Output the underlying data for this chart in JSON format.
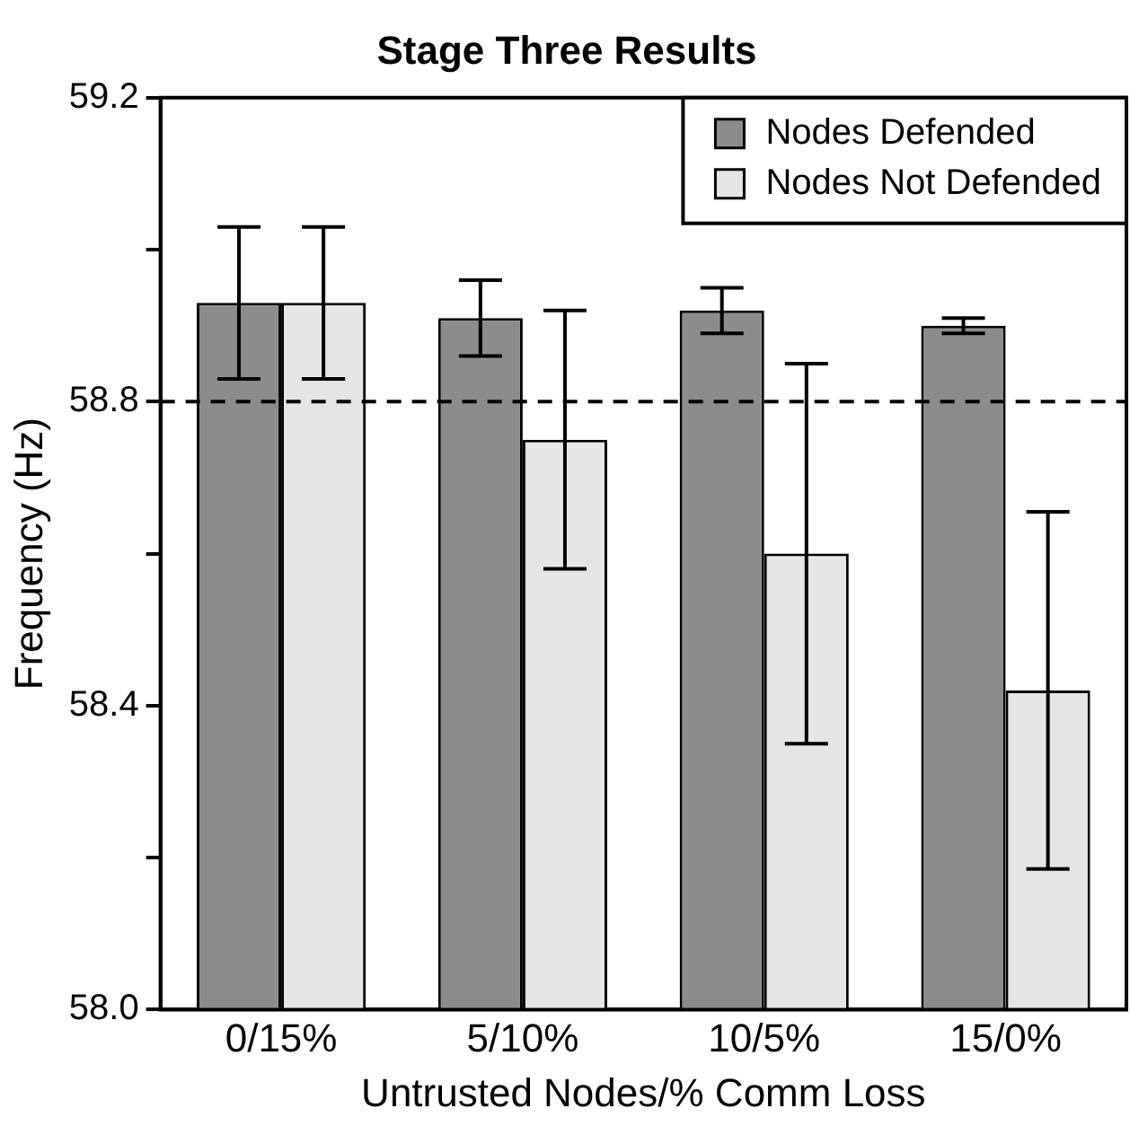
{
  "chart_data": {
    "type": "bar",
    "title": "Stage Three Results",
    "xlabel": "Untrusted Nodes/% Comm Loss",
    "ylabel": "Frequency (Hz)",
    "categories": [
      "0/15%",
      "5/10%",
      "10/5%",
      "15/0%"
    ],
    "series": [
      {
        "name": "Nodes Defended",
        "color": "#8c8c8c",
        "values": [
          58.93,
          58.91,
          58.92,
          58.9
        ],
        "errors": [
          0.1,
          0.05,
          0.03,
          0.01
        ]
      },
      {
        "name": "Nodes Not Defended",
        "color": "#e6e6e6",
        "values": [
          58.93,
          58.75,
          58.6,
          58.42
        ],
        "errors": [
          0.1,
          0.17,
          0.25,
          0.235
        ]
      }
    ],
    "ylim": [
      58,
      59.2
    ],
    "yticks": [
      {
        "value": 58,
        "label": "58.0"
      },
      {
        "value": 58.2,
        "label": null
      },
      58.4,
      {
        "value": 58.6,
        "label": null
      },
      58.8,
      {
        "value": 59,
        "label": null
      },
      59.2
    ],
    "ref_lines": [
      {
        "axis": "y",
        "value": 58.8,
        "line_style": "dashed",
        "color": "#000000"
      }
    ],
    "legend": "top right",
    "grid": false
  }
}
